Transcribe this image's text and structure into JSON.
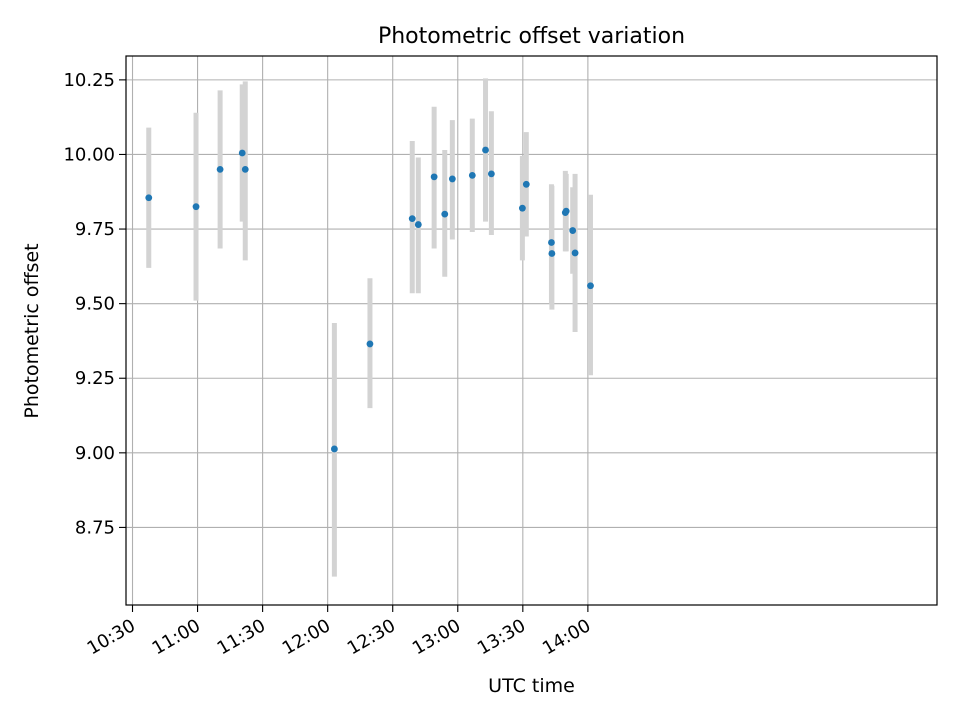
{
  "chart_data": {
    "type": "scatter",
    "title": "Photometric offset variation",
    "xlabel": "UTC time",
    "ylabel": "Photometric offset",
    "grid": true,
    "xlim": [
      627,
      1001
    ],
    "ylim": [
      8.49,
      10.33
    ],
    "x_ticks": [
      {
        "value": 630,
        "label": "10:30"
      },
      {
        "value": 660,
        "label": "11:00"
      },
      {
        "value": 690,
        "label": "11:30"
      },
      {
        "value": 720,
        "label": "12:00"
      },
      {
        "value": 750,
        "label": "12:30"
      },
      {
        "value": 780,
        "label": "13:00"
      },
      {
        "value": 810,
        "label": "13:30"
      },
      {
        "value": 840,
        "label": "14:00"
      }
    ],
    "y_ticks": [
      {
        "value": 8.75,
        "label": "8.75"
      },
      {
        "value": 9.0,
        "label": "9.00"
      },
      {
        "value": 9.25,
        "label": "9.25"
      },
      {
        "value": 9.5,
        "label": "9.50"
      },
      {
        "value": 9.75,
        "label": "9.75"
      },
      {
        "value": 10.0,
        "label": "10.00"
      },
      {
        "value": 10.25,
        "label": "10.25"
      }
    ],
    "series": [
      {
        "name": "offset",
        "marker_color": "#1f77b4",
        "errorbar_color": "#d3d3d3",
        "points": [
          {
            "x": 637.5,
            "y": 9.855,
            "low": 9.62,
            "high": 10.09
          },
          {
            "x": 659.3,
            "y": 9.825,
            "low": 9.51,
            "high": 10.14
          },
          {
            "x": 670.4,
            "y": 9.95,
            "low": 9.685,
            "high": 10.215
          },
          {
            "x": 680.6,
            "y": 10.005,
            "low": 9.775,
            "high": 10.235
          },
          {
            "x": 682.0,
            "y": 9.95,
            "low": 9.645,
            "high": 10.245
          },
          {
            "x": 723.1,
            "y": 9.013,
            "low": 8.585,
            "high": 9.435
          },
          {
            "x": 739.5,
            "y": 9.365,
            "low": 9.15,
            "high": 9.585
          },
          {
            "x": 759.0,
            "y": 9.785,
            "low": 9.535,
            "high": 10.045
          },
          {
            "x": 761.8,
            "y": 9.765,
            "low": 9.535,
            "high": 9.99
          },
          {
            "x": 769.1,
            "y": 9.925,
            "low": 9.685,
            "high": 10.16
          },
          {
            "x": 774.0,
            "y": 9.8,
            "low": 9.59,
            "high": 10.015
          },
          {
            "x": 777.5,
            "y": 9.918,
            "low": 9.715,
            "high": 10.115
          },
          {
            "x": 786.7,
            "y": 9.93,
            "low": 9.74,
            "high": 10.12
          },
          {
            "x": 792.8,
            "y": 10.015,
            "low": 9.775,
            "high": 10.255
          },
          {
            "x": 795.5,
            "y": 9.935,
            "low": 9.73,
            "high": 10.145
          },
          {
            "x": 809.8,
            "y": 9.82,
            "low": 9.645,
            "high": 9.995
          },
          {
            "x": 811.6,
            "y": 9.9,
            "low": 9.725,
            "high": 10.075
          },
          {
            "x": 823.2,
            "y": 9.705,
            "low": 9.5,
            "high": 9.9
          },
          {
            "x": 823.4,
            "y": 9.668,
            "low": 9.48,
            "high": 9.895
          },
          {
            "x": 829.6,
            "y": 9.805,
            "low": 9.675,
            "high": 9.945
          },
          {
            "x": 830.0,
            "y": 9.81,
            "low": 9.675,
            "high": 9.935
          },
          {
            "x": 833.0,
            "y": 9.745,
            "low": 9.6,
            "high": 9.89
          },
          {
            "x": 834.1,
            "y": 9.67,
            "low": 9.405,
            "high": 9.935
          },
          {
            "x": 841.2,
            "y": 9.56,
            "low": 9.26,
            "high": 9.865
          }
        ]
      }
    ]
  }
}
